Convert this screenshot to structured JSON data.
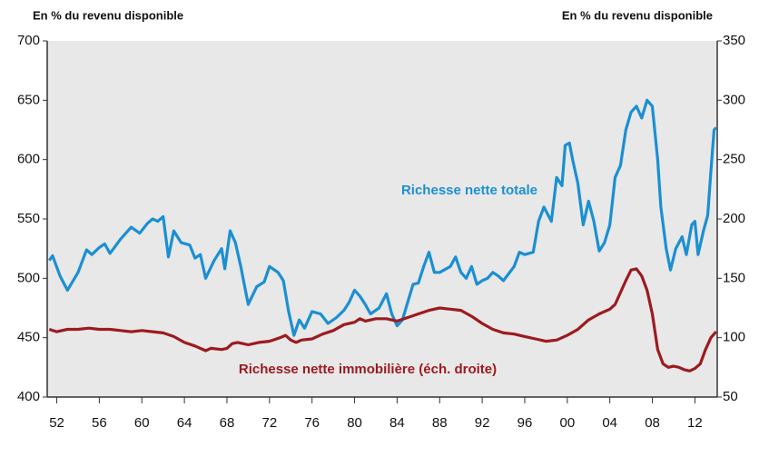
{
  "chart_data": {
    "type": "line",
    "ylabel": "En % du revenu disponible",
    "y2label": "En % du revenu disponible",
    "annotations": [
      "Richesse nette totale",
      "Richesse nette immobilière (éch. droite)"
    ],
    "xlim": [
      1951.1,
      2014.1
    ],
    "xticks": [
      {
        "value": 1952,
        "label": "52"
      },
      {
        "value": 1956,
        "label": "56"
      },
      {
        "value": 1960,
        "label": "60"
      },
      {
        "value": 1964,
        "label": "64"
      },
      {
        "value": 1968,
        "label": "68"
      },
      {
        "value": 1972,
        "label": "72"
      },
      {
        "value": 1976,
        "label": "76"
      },
      {
        "value": 1980,
        "label": "80"
      },
      {
        "value": 1984,
        "label": "84"
      },
      {
        "value": 1988,
        "label": "88"
      },
      {
        "value": 1992,
        "label": "92"
      },
      {
        "value": 1996,
        "label": "96"
      },
      {
        "value": 2000,
        "label": "00"
      },
      {
        "value": 2004,
        "label": "04"
      },
      {
        "value": 2008,
        "label": "08"
      },
      {
        "value": 2012,
        "label": "12"
      }
    ],
    "ylim": [
      400,
      700
    ],
    "yticks": [
      400,
      450,
      500,
      550,
      600,
      650,
      700
    ],
    "y2lim": [
      50,
      350
    ],
    "y2ticks": [
      50,
      100,
      150,
      200,
      250,
      300,
      350
    ],
    "series": [
      {
        "name": "Richesse nette totale",
        "color": "#1b8fd2",
        "x": [
          1951.3,
          1951.6,
          1952.3,
          1953,
          1954,
          1954.8,
          1955.3,
          1956,
          1956.5,
          1957,
          1958,
          1959,
          1959.8,
          1960.5,
          1961,
          1961.5,
          1962,
          1962.5,
          1963,
          1963.7,
          1964.5,
          1965,
          1965.5,
          1966,
          1966.8,
          1967.5,
          1967.8,
          1968.3,
          1968.8,
          1969.3,
          1970,
          1970.8,
          1971.5,
          1972,
          1972.8,
          1973.3,
          1973.8,
          1974.3,
          1974.8,
          1975.3,
          1976,
          1976.8,
          1977.5,
          1978.3,
          1979,
          1979.5,
          1980,
          1980.5,
          1981,
          1981.5,
          1982.3,
          1983,
          1983.5,
          1984,
          1984.5,
          1985,
          1985.5,
          1986,
          1986.5,
          1987,
          1987.5,
          1988,
          1989,
          1989.5,
          1990,
          1990.5,
          1991,
          1991.5,
          1992,
          1992.5,
          1993,
          1993.5,
          1994,
          1995,
          1995.5,
          1996,
          1996.8,
          1997.3,
          1997.8,
          1998.5,
          1999,
          1999.5,
          1999.8,
          2000.2,
          2000.5,
          2001,
          2001.5,
          2002,
          2002.5,
          2003,
          2003.5,
          2004,
          2004.5,
          2005,
          2005.5,
          2006,
          2006.5,
          2007,
          2007.5,
          2008,
          2008.5,
          2008.8,
          2009.3,
          2009.7,
          2010.2,
          2010.8,
          2011.2,
          2011.7,
          2012,
          2012.3,
          2012.8,
          2013.2,
          2013.5,
          2013.8,
          2014
        ],
        "values": [
          515,
          519,
          502,
          490,
          505,
          524,
          520,
          526,
          529,
          521,
          533,
          543,
          538,
          546,
          550,
          548,
          552,
          518,
          540,
          530,
          528,
          517,
          520,
          500,
          515,
          525,
          508,
          540,
          530,
          510,
          478,
          493,
          497,
          510,
          505,
          498,
          472,
          452,
          465,
          458,
          472,
          470,
          462,
          467,
          473,
          480,
          490,
          485,
          478,
          470,
          475,
          487,
          470,
          460,
          465,
          480,
          495,
          496,
          510,
          522,
          505,
          505,
          510,
          518,
          505,
          500,
          510,
          495,
          498,
          500,
          505,
          502,
          498,
          510,
          522,
          520,
          522,
          548,
          560,
          548,
          585,
          578,
          612,
          614,
          600,
          580,
          545,
          565,
          548,
          523,
          530,
          545,
          585,
          595,
          625,
          640,
          645,
          635,
          650,
          645,
          600,
          560,
          525,
          507,
          525,
          535,
          520,
          545,
          548,
          520,
          540,
          553,
          590,
          625,
          627
        ]
      },
      {
        "name": "Richesse nette immobilière (éch. droite)",
        "color": "#9b1b20",
        "axis": "y2",
        "x": [
          1951.3,
          1952,
          1953,
          1954,
          1955,
          1956,
          1957,
          1958,
          1959,
          1960,
          1961,
          1962,
          1963,
          1964,
          1965,
          1966,
          1966.5,
          1967.5,
          1968,
          1968.5,
          1969,
          1970,
          1971,
          1972,
          1973,
          1973.5,
          1974,
          1974.5,
          1975,
          1976,
          1977,
          1978,
          1979,
          1980,
          1980.5,
          1981,
          1982,
          1983,
          1984,
          1985,
          1986,
          1987,
          1988,
          1989,
          1990,
          1991,
          1992,
          1993,
          1994,
          1995,
          1996,
          1997,
          1998,
          1999,
          2000,
          2001,
          2002,
          2003,
          2004,
          2004.5,
          2005,
          2005.5,
          2006,
          2006.5,
          2007,
          2007.5,
          2008,
          2008.5,
          2009,
          2009.5,
          2010,
          2010.5,
          2011,
          2011.5,
          2012,
          2012.5,
          2013,
          2013.5,
          2014
        ],
        "values": [
          107,
          105,
          107,
          107,
          108,
          107,
          107,
          106,
          105,
          106,
          105,
          104,
          101,
          96,
          93,
          89,
          91,
          90,
          91,
          95,
          96,
          94,
          96,
          97,
          100,
          102,
          98,
          96,
          98,
          99,
          103,
          106,
          111,
          113,
          116,
          114,
          116,
          116,
          114,
          117,
          120,
          123,
          125,
          124,
          123,
          118,
          112,
          107,
          104,
          103,
          101,
          99,
          97,
          98,
          102,
          107,
          115,
          120,
          124,
          128,
          138,
          148,
          157,
          158,
          152,
          140,
          120,
          90,
          78,
          75,
          76,
          75,
          73,
          72,
          74,
          78,
          90,
          100,
          105
        ]
      }
    ]
  }
}
